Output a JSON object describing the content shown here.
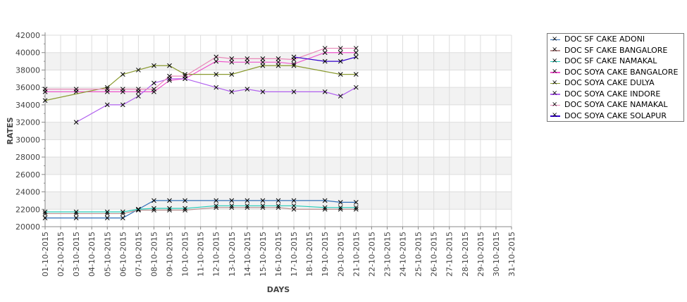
{
  "chart_data": {
    "type": "line",
    "title": "",
    "xlabel": "DAYS",
    "ylabel": "RATES",
    "ylim": [
      20000,
      42000
    ],
    "yticks": [
      "20000",
      "22000",
      "24000",
      "26000",
      "28000",
      "30000",
      "32000",
      "34000",
      "36000",
      "38000",
      "40000",
      "42000"
    ],
    "categories": [
      "01-10-2015",
      "02-10-2015",
      "03-10-2015",
      "04-10-2015",
      "05-10-2015",
      "06-10-2015",
      "07-10-2015",
      "08-10-2015",
      "09-10-2015",
      "10-10-2015",
      "11-10-2015",
      "12-10-2015",
      "13-10-2015",
      "14-10-2015",
      "15-10-2015",
      "16-10-2015",
      "17-10-2015",
      "18-10-2015",
      "19-10-2015",
      "20-10-2015",
      "21-10-2015",
      "22-10-2015",
      "23-10-2015",
      "24-10-2015",
      "25-10-2015",
      "26-10-2015",
      "27-10-2015",
      "28-10-2015",
      "29-10-2015",
      "30-10-2015",
      "31-10-2015"
    ],
    "legend_position": "right",
    "series": [
      {
        "name": "DOC SF CAKE ADONI",
        "color": "#2f6fb8",
        "points": [
          [
            1,
            21000
          ],
          [
            3,
            21000
          ],
          [
            5,
            21000
          ],
          [
            6,
            21000
          ],
          [
            7,
            22000
          ],
          [
            8,
            23000
          ],
          [
            9,
            23000
          ],
          [
            10,
            23000
          ],
          [
            12,
            23000
          ],
          [
            13,
            23000
          ],
          [
            14,
            23000
          ],
          [
            15,
            23000
          ],
          [
            16,
            23000
          ],
          [
            17,
            23000
          ],
          [
            19,
            23000
          ],
          [
            20,
            22800
          ],
          [
            21,
            22800
          ]
        ]
      },
      {
        "name": "DOC SF CAKE BANGALORE",
        "color": "#b89090",
        "points": [
          [
            1,
            21500
          ],
          [
            3,
            21500
          ],
          [
            5,
            21500
          ],
          [
            6,
            21500
          ],
          [
            7,
            21900
          ],
          [
            8,
            21900
          ],
          [
            9,
            21900
          ],
          [
            10,
            21900
          ],
          [
            12,
            22200
          ],
          [
            13,
            22200
          ],
          [
            14,
            22200
          ],
          [
            15,
            22200
          ],
          [
            16,
            22200
          ],
          [
            17,
            22000
          ],
          [
            19,
            22000
          ],
          [
            20,
            22000
          ],
          [
            21,
            22000
          ]
        ]
      },
      {
        "name": "DOC SF CAKE NAMAKAL",
        "color": "#22ccb8",
        "points": [
          [
            1,
            21700
          ],
          [
            3,
            21700
          ],
          [
            5,
            21700
          ],
          [
            6,
            21700
          ],
          [
            7,
            22000
          ],
          [
            8,
            22100
          ],
          [
            9,
            22100
          ],
          [
            10,
            22100
          ],
          [
            12,
            22400
          ],
          [
            13,
            22400
          ],
          [
            14,
            22400
          ],
          [
            15,
            22400
          ],
          [
            16,
            22400
          ],
          [
            17,
            22400
          ],
          [
            19,
            22200
          ],
          [
            20,
            22200
          ],
          [
            21,
            22200
          ]
        ]
      },
      {
        "name": "DOC SOYA CAKE BANGALORE",
        "color": "#ee55cc",
        "points": [
          [
            1,
            35500
          ],
          [
            3,
            35500
          ],
          [
            5,
            35500
          ],
          [
            6,
            35500
          ],
          [
            7,
            35500
          ],
          [
            8,
            35500
          ],
          [
            9,
            36800
          ],
          [
            10,
            37000
          ],
          [
            12,
            39000
          ],
          [
            13,
            38900
          ],
          [
            14,
            38900
          ],
          [
            15,
            38900
          ],
          [
            16,
            38900
          ],
          [
            17,
            38700
          ],
          [
            19,
            40000
          ],
          [
            20,
            40000
          ],
          [
            21,
            40000
          ]
        ]
      },
      {
        "name": "DOC SOYA CAKE DULYA",
        "color": "#8a9a30",
        "points": [
          [
            1,
            34500
          ],
          [
            5,
            36000
          ],
          [
            6,
            37500
          ],
          [
            7,
            38000
          ],
          [
            8,
            38500
          ],
          [
            9,
            38500
          ],
          [
            10,
            37500
          ],
          [
            12,
            37500
          ],
          [
            13,
            37500
          ],
          [
            15,
            38500
          ],
          [
            16,
            38500
          ],
          [
            17,
            38500
          ],
          [
            20,
            37500
          ],
          [
            21,
            37500
          ]
        ]
      },
      {
        "name": "DOC SOYA CAKE INDORE",
        "color": "#b060ee",
        "points": [
          [
            3,
            32000
          ],
          [
            5,
            34000
          ],
          [
            6,
            34000
          ],
          [
            7,
            35000
          ],
          [
            8,
            36500
          ],
          [
            9,
            37000
          ],
          [
            10,
            37000
          ],
          [
            12,
            36000
          ],
          [
            13,
            35500
          ],
          [
            14,
            35800
          ],
          [
            15,
            35500
          ],
          [
            17,
            35500
          ],
          [
            19,
            35500
          ],
          [
            20,
            35000
          ],
          [
            21,
            36000
          ]
        ]
      },
      {
        "name": "DOC SOYA CAKE NAMAKAL",
        "color": "#e888b8",
        "points": [
          [
            1,
            35800
          ],
          [
            3,
            35800
          ],
          [
            5,
            35800
          ],
          [
            6,
            35800
          ],
          [
            7,
            35800
          ],
          [
            8,
            35800
          ],
          [
            9,
            37300
          ],
          [
            10,
            37300
          ],
          [
            12,
            39500
          ],
          [
            13,
            39300
          ],
          [
            14,
            39300
          ],
          [
            15,
            39300
          ],
          [
            16,
            39300
          ],
          [
            17,
            39200
          ],
          [
            19,
            40500
          ],
          [
            20,
            40500
          ],
          [
            21,
            40500
          ]
        ]
      },
      {
        "name": "DOC SOYA CAKE SOLAPUR",
        "color": "#3300cc",
        "points": [
          [
            17,
            39500
          ],
          [
            19,
            39000
          ],
          [
            20,
            39000
          ],
          [
            21,
            39500
          ]
        ]
      }
    ]
  }
}
